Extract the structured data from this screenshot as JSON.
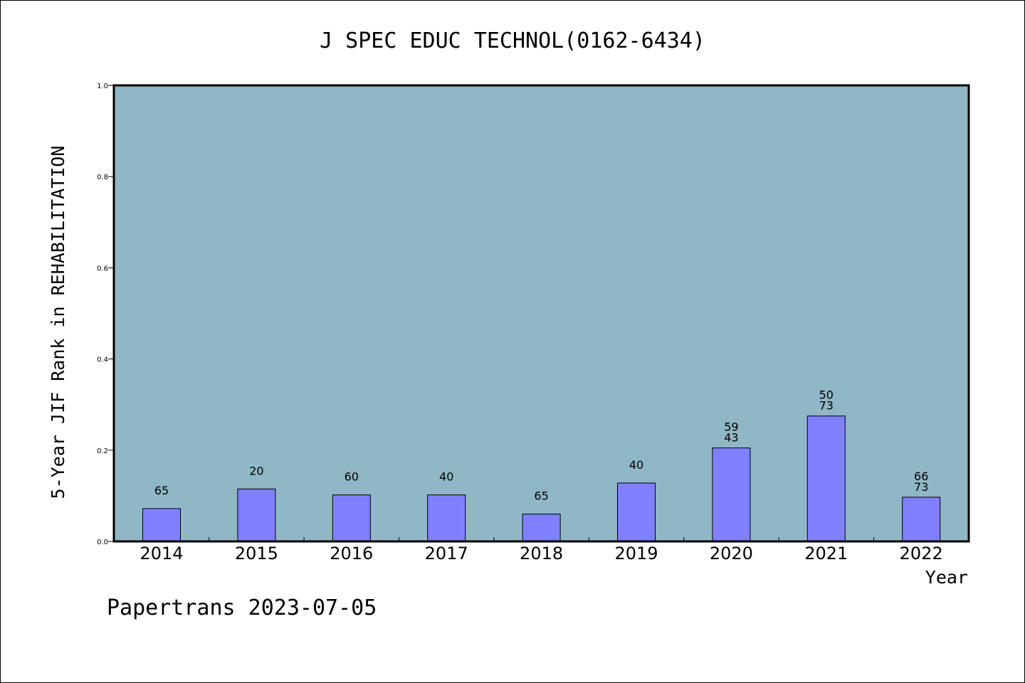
{
  "chart_data": {
    "type": "bar",
    "title": "J SPEC EDUC TECHNOL(0162-6434)",
    "xlabel": "Year",
    "ylabel": "5-Year JIF Rank in REHABILITATION",
    "ylim": [
      0,
      1.0
    ],
    "yticks": [
      "0.0",
      "0.2",
      "0.4",
      "0.6",
      "0.8",
      "1.0"
    ],
    "ytick_values": [
      0,
      0.2,
      0.4,
      0.6,
      0.8,
      1.0
    ],
    "categories": [
      "2014",
      "2015",
      "2016",
      "2017",
      "2018",
      "2019",
      "2020",
      "2021",
      "2022"
    ],
    "values": [
      0.072,
      0.115,
      0.102,
      0.102,
      0.06,
      0.128,
      0.205,
      0.275,
      0.097
    ],
    "label_top": [
      "",
      "",
      "",
      "",
      "",
      "",
      "59",
      "50",
      "66"
    ],
    "label_bottom": [
      "65",
      "20",
      "60",
      "40",
      "65",
      "40",
      "43",
      "73",
      "73"
    ],
    "grid": false,
    "legend": "none",
    "colors": {
      "plot_bg": "#8fb7c5",
      "bar": "#8080ff",
      "bar_stroke": "#000000"
    }
  },
  "footer": {
    "watermark": "Papertrans 2023-07-05"
  }
}
